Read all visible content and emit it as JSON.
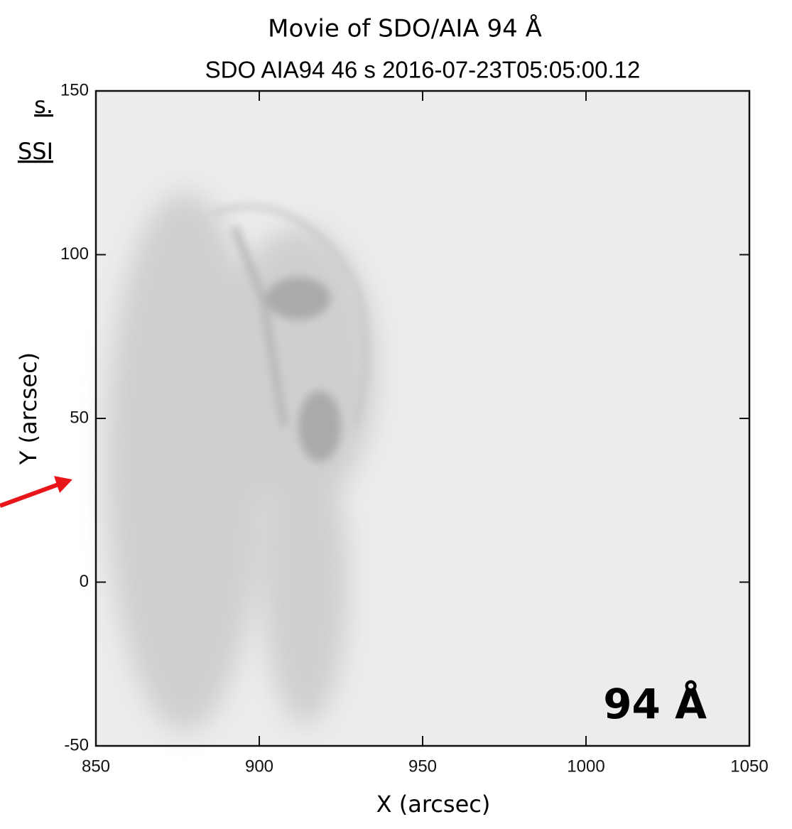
{
  "chart_data": {
    "type": "image",
    "title": "Movie of SDO/AIA 94 Å",
    "subtitle": "SDO AIA94 46 s  2016-07-23T05:05:00.12",
    "x_label": "X (arcsec)",
    "y_label": "Y (arcsec)",
    "annotation": "94 Å",
    "side_text": [
      "s.",
      "SSI"
    ],
    "xlim": [
      850,
      1050
    ],
    "ylim": [
      -50,
      150
    ],
    "xticks": [
      850,
      900,
      950,
      1000,
      1050
    ],
    "yticks": [
      -50,
      0,
      50,
      100,
      150
    ]
  }
}
